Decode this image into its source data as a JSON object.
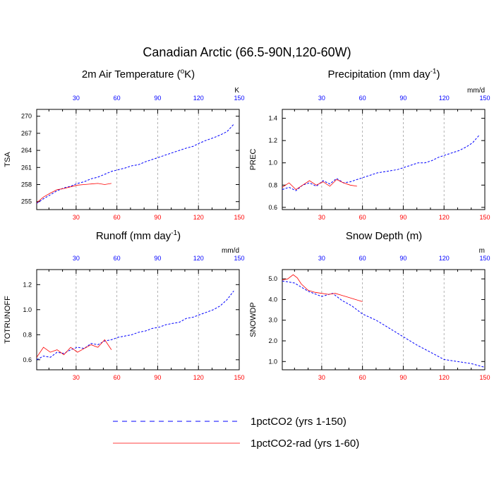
{
  "figure": {
    "title": "Canadian Arctic (66.5-90N,120-60W)"
  },
  "legend": [
    {
      "label": "1pctCO2 (yrs 1-150)",
      "color": "#0000ff",
      "dash": "7,6",
      "width": 1
    },
    {
      "label": "1pctCO2-rad (yrs 1-60)",
      "color": "#ff0000",
      "dash": "",
      "width": 0.8
    }
  ],
  "colors": {
    "blue_series": "#0000ff",
    "red_series": "#ff0000",
    "top_ticks": "#0000ff",
    "bottom_ticks": "#ff0000",
    "grid": "#a0a0a0"
  },
  "chart_data": [
    {
      "type": "line",
      "title": "2m Air Temperature (°K)",
      "title_base": "2m Air Temperature (",
      "title_sup": "o",
      "title_tail": "K)",
      "ylabel": "TSA",
      "units": "K",
      "xlim": [
        1,
        150
      ],
      "ylim": [
        253.6,
        271.2
      ],
      "xticks": [
        30,
        60,
        90,
        120,
        150
      ],
      "yticks": [
        255,
        258,
        261,
        264,
        267,
        270
      ],
      "ytick_labels": [
        "255",
        "258",
        "261",
        "264",
        "267",
        "270"
      ],
      "grid": "vertical dashed at 30, 60, 90, 120",
      "series": [
        {
          "name": "1pctCO2 (yrs 1-150)",
          "x_start": 1,
          "x_step": 5,
          "values": [
            254.7,
            255.5,
            256.2,
            256.9,
            257.4,
            257.7,
            258.2,
            258.5,
            259.0,
            259.3,
            259.8,
            260.3,
            260.6,
            260.9,
            261.3,
            261.5,
            262.0,
            262.4,
            262.8,
            263.2,
            263.6,
            264.0,
            264.4,
            264.7,
            265.3,
            265.8,
            266.2,
            266.7,
            267.3,
            268.6
          ]
        },
        {
          "name": "1pctCO2-rad (yrs 1-60)",
          "x_start": 1,
          "x_step": 5,
          "values": [
            254.8,
            255.8,
            256.5,
            257.1,
            257.3,
            257.6,
            257.9,
            258.0,
            258.1,
            258.2,
            258.0,
            258.2
          ]
        }
      ]
    },
    {
      "type": "line",
      "title": "Precipitation (mm day⁻¹)",
      "title_base": "Precipitation (mm day",
      "title_sup": "-1",
      "title_tail": ")",
      "ylabel": "PREC",
      "units": "mm/d",
      "xlim": [
        1,
        150
      ],
      "ylim": [
        0.58,
        1.48
      ],
      "xticks": [
        30,
        60,
        90,
        120,
        150
      ],
      "yticks": [
        0.6,
        0.8,
        1.0,
        1.2,
        1.4
      ],
      "ytick_labels": [
        "0.6",
        "0.8",
        "1.0",
        "1.2",
        "1.4"
      ],
      "grid": "vertical dashed at 30, 60, 90, 120",
      "series": [
        {
          "name": "1pctCO2 (yrs 1-150)",
          "x_start": 1,
          "x_step": 5,
          "values": [
            0.76,
            0.78,
            0.75,
            0.8,
            0.82,
            0.79,
            0.84,
            0.81,
            0.86,
            0.82,
            0.83,
            0.85,
            0.87,
            0.89,
            0.91,
            0.92,
            0.93,
            0.94,
            0.96,
            0.98,
            1.0,
            1.0,
            1.02,
            1.05,
            1.07,
            1.09,
            1.11,
            1.14,
            1.18,
            1.25
          ]
        },
        {
          "name": "1pctCO2-rad (yrs 1-60)",
          "x_start": 1,
          "x_step": 5,
          "values": [
            0.78,
            0.82,
            0.76,
            0.8,
            0.84,
            0.8,
            0.83,
            0.79,
            0.85,
            0.82,
            0.8,
            0.79
          ]
        }
      ]
    },
    {
      "type": "line",
      "title": "Runoff (mm day⁻¹)",
      "title_base": "Runoff (mm day",
      "title_sup": "-1",
      "title_tail": ")",
      "ylabel": "TOTRUNOFF",
      "units": "mm/d",
      "xlim": [
        1,
        150
      ],
      "ylim": [
        0.52,
        1.32
      ],
      "xticks": [
        30,
        60,
        90,
        120,
        150
      ],
      "yticks": [
        0.6,
        0.8,
        1.0,
        1.2
      ],
      "ytick_labels": [
        "0.6",
        "0.8",
        "1.0",
        "1.2"
      ],
      "grid": "vertical dashed at 30, 60, 90, 120",
      "series": [
        {
          "name": "1pctCO2 (yrs 1-150)",
          "x_start": 1,
          "x_step": 5,
          "values": [
            0.6,
            0.63,
            0.62,
            0.66,
            0.65,
            0.68,
            0.7,
            0.69,
            0.73,
            0.72,
            0.75,
            0.76,
            0.78,
            0.79,
            0.8,
            0.82,
            0.83,
            0.85,
            0.86,
            0.88,
            0.89,
            0.9,
            0.93,
            0.94,
            0.96,
            0.98,
            1.0,
            1.03,
            1.08,
            1.15
          ]
        },
        {
          "name": "1pctCO2-rad (yrs 1-60)",
          "x_start": 1,
          "x_step": 5,
          "values": [
            0.62,
            0.7,
            0.66,
            0.68,
            0.64,
            0.7,
            0.66,
            0.69,
            0.72,
            0.7,
            0.76,
            0.68
          ]
        }
      ]
    },
    {
      "type": "line",
      "title": "Snow Depth (m)",
      "title_base": "Snow Depth (m)",
      "title_sup": "",
      "title_tail": "",
      "ylabel": "SNOWDP",
      "units": "m",
      "xlim": [
        1,
        150
      ],
      "ylim": [
        0.6,
        5.45
      ],
      "xticks": [
        30,
        60,
        90,
        120,
        150
      ],
      "yticks": [
        1.0,
        2.0,
        3.0,
        4.0,
        5.0
      ],
      "ytick_labels": [
        "1.0",
        "2.0",
        "3.0",
        "4.0",
        "5.0"
      ],
      "grid": "vertical dashed at 30, 60, 90, 120",
      "series": [
        {
          "name": "1pctCO2 (yrs 1-150)",
          "x": [
            1,
            10,
            20,
            30,
            38,
            45,
            52,
            60,
            70,
            80,
            90,
            100,
            110,
            120,
            130,
            140,
            150
          ],
          "values": [
            4.9,
            4.8,
            4.4,
            4.15,
            4.3,
            3.95,
            3.7,
            3.3,
            3.0,
            2.6,
            2.2,
            1.8,
            1.45,
            1.1,
            1.0,
            0.9,
            0.72
          ]
        },
        {
          "name": "1pctCO2-rad (yrs 1-60)",
          "x": [
            1,
            5,
            9,
            12,
            15,
            20,
            25,
            30,
            35,
            40,
            45,
            50,
            55,
            60
          ],
          "values": [
            4.95,
            5.0,
            5.2,
            5.05,
            4.75,
            4.45,
            4.35,
            4.3,
            4.25,
            4.3,
            4.2,
            4.1,
            4.0,
            3.9
          ]
        }
      ]
    }
  ]
}
